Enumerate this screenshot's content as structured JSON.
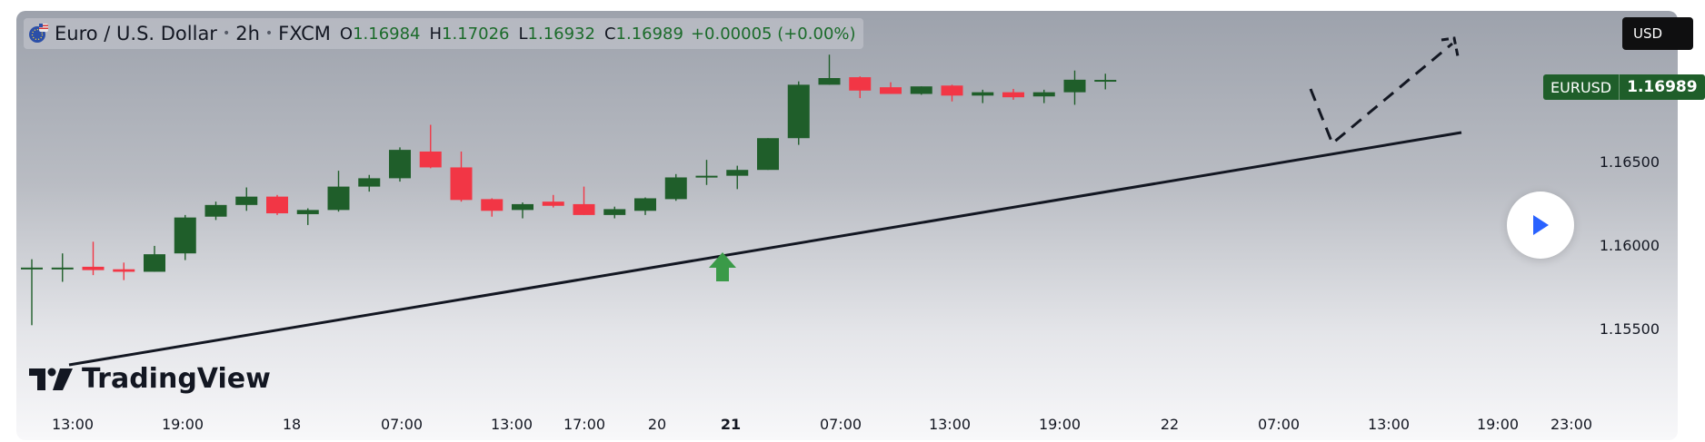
{
  "header": {
    "symbol": "Euro / U.S. Dollar",
    "interval": "2h",
    "exchange": "FXCM",
    "open_key": "O",
    "open": "1.16984",
    "high_key": "H",
    "high": "1.17026",
    "low_key": "L",
    "low": "1.16932",
    "close_key": "C",
    "close": "1.16989",
    "change": "+0.00005 (+0.00%)"
  },
  "currency_button": "USD",
  "price_tag": {
    "symbol": "EURUSD",
    "value": "1.16989"
  },
  "logo_text": "TradingView",
  "colors": {
    "up": "#1f5e2a",
    "down": "#f23645",
    "arrow": "#3a9a48",
    "play": "#2962ff"
  },
  "chart_data": {
    "type": "candlestick",
    "y_ticks": [
      "1.16500",
      "1.16000",
      "1.15500"
    ],
    "y_tick_values": [
      1.165,
      1.16,
      1.155
    ],
    "x_ticks": [
      "13:00",
      "19:00",
      "18",
      "07:00",
      "13:00",
      "17:00",
      "20",
      "21",
      "07:00",
      "13:00",
      "19:00",
      "22",
      "07:00",
      "13:00",
      "19:00",
      "23:00"
    ],
    "x_tick_bold": [
      false,
      false,
      false,
      false,
      false,
      false,
      false,
      true,
      false,
      false,
      false,
      false,
      false,
      false,
      false,
      false
    ],
    "candles": [
      {
        "o": 1.15862,
        "h": 1.15915,
        "l": 1.1552,
        "c": 1.15865
      },
      {
        "o": 1.15862,
        "h": 1.1595,
        "l": 1.1578,
        "c": 1.15865
      },
      {
        "o": 1.1587,
        "h": 1.1602,
        "l": 1.1582,
        "c": 1.1585
      },
      {
        "o": 1.15855,
        "h": 1.15895,
        "l": 1.1579,
        "c": 1.1584
      },
      {
        "o": 1.1584,
        "h": 1.15995,
        "l": 1.1584,
        "c": 1.15945
      },
      {
        "o": 1.1595,
        "h": 1.1618,
        "l": 1.1591,
        "c": 1.16165
      },
      {
        "o": 1.1617,
        "h": 1.1626,
        "l": 1.1615,
        "c": 1.1624
      },
      {
        "o": 1.1624,
        "h": 1.16345,
        "l": 1.16205,
        "c": 1.1629
      },
      {
        "o": 1.1629,
        "h": 1.163,
        "l": 1.1618,
        "c": 1.1619
      },
      {
        "o": 1.16185,
        "h": 1.1622,
        "l": 1.1612,
        "c": 1.1621
      },
      {
        "o": 1.1621,
        "h": 1.16445,
        "l": 1.162,
        "c": 1.1635
      },
      {
        "o": 1.1635,
        "h": 1.1642,
        "l": 1.1632,
        "c": 1.164
      },
      {
        "o": 1.164,
        "h": 1.16585,
        "l": 1.1638,
        "c": 1.1657
      },
      {
        "o": 1.1656,
        "h": 1.1672,
        "l": 1.1646,
        "c": 1.16465
      },
      {
        "o": 1.16465,
        "h": 1.1656,
        "l": 1.1626,
        "c": 1.1627
      },
      {
        "o": 1.16275,
        "h": 1.1628,
        "l": 1.1617,
        "c": 1.16205
      },
      {
        "o": 1.1621,
        "h": 1.16255,
        "l": 1.1616,
        "c": 1.16245
      },
      {
        "o": 1.1626,
        "h": 1.163,
        "l": 1.16225,
        "c": 1.16235
      },
      {
        "o": 1.16245,
        "h": 1.1635,
        "l": 1.1618,
        "c": 1.1618
      },
      {
        "o": 1.1618,
        "h": 1.1623,
        "l": 1.1616,
        "c": 1.16215
      },
      {
        "o": 1.16205,
        "h": 1.16285,
        "l": 1.1618,
        "c": 1.1628
      },
      {
        "o": 1.16275,
        "h": 1.16425,
        "l": 1.16265,
        "c": 1.16405
      },
      {
        "o": 1.16405,
        "h": 1.1651,
        "l": 1.1636,
        "c": 1.16415
      },
      {
        "o": 1.16415,
        "h": 1.16475,
        "l": 1.16335,
        "c": 1.1645
      },
      {
        "o": 1.1645,
        "h": 1.1664,
        "l": 1.1645,
        "c": 1.1664
      },
      {
        "o": 1.1664,
        "h": 1.1698,
        "l": 1.166,
        "c": 1.1696
      },
      {
        "o": 1.1696,
        "h": 1.1714,
        "l": 1.1696,
        "c": 1.17
      },
      {
        "o": 1.17005,
        "h": 1.1701,
        "l": 1.1688,
        "c": 1.16925
      },
      {
        "o": 1.16945,
        "h": 1.16975,
        "l": 1.16905,
        "c": 1.16905
      },
      {
        "o": 1.16905,
        "h": 1.1695,
        "l": 1.169,
        "c": 1.1695
      },
      {
        "o": 1.16955,
        "h": 1.1696,
        "l": 1.1686,
        "c": 1.16895
      },
      {
        "o": 1.16895,
        "h": 1.1693,
        "l": 1.1685,
        "c": 1.16915
      },
      {
        "o": 1.16915,
        "h": 1.16935,
        "l": 1.1687,
        "c": 1.16885
      },
      {
        "o": 1.1689,
        "h": 1.1693,
        "l": 1.1685,
        "c": 1.16915
      },
      {
        "o": 1.16915,
        "h": 1.17045,
        "l": 1.1684,
        "c": 1.1699
      },
      {
        "o": 1.16984,
        "h": 1.17026,
        "l": 1.16932,
        "c": 1.16989
      }
    ]
  }
}
